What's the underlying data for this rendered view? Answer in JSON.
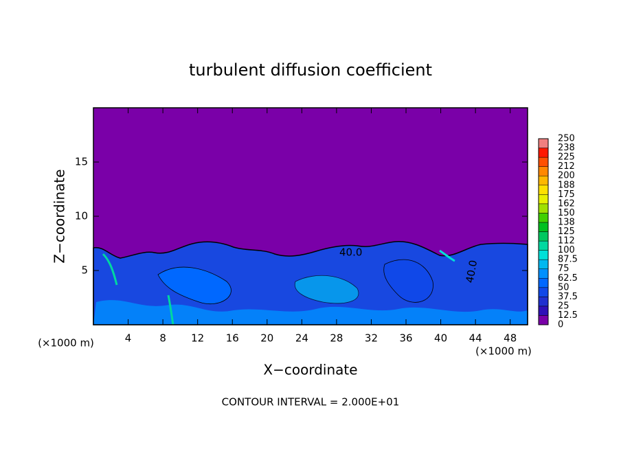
{
  "chart_data": {
    "type": "contour",
    "title": "turbulent diffusion coefficient",
    "x_label": "X−coordinate",
    "y_label": "Z−coordinate",
    "x_unit_label": "(×1000 m)",
    "annotation": "CONTOUR INTERVAL = 2.000E+01",
    "contour_labels": [
      "40.0",
      "40.0"
    ],
    "xlim": [
      0,
      50
    ],
    "xticks": [
      4,
      8,
      12,
      16,
      20,
      24,
      28,
      32,
      36,
      40,
      44,
      48
    ],
    "ylim": [
      0,
      20
    ],
    "yticks": [
      5,
      10,
      15
    ],
    "colorbar": {
      "lim": [
        0,
        250
      ],
      "ticks": [
        0,
        12.5,
        25,
        37.5,
        50,
        62.5,
        75,
        87.5,
        100,
        {
          "value": 112.5,
          "label": "112"
        },
        125,
        {
          "value": 137.5,
          "label": "138"
        },
        150,
        {
          "value": 162.5,
          "label": "162"
        },
        175,
        {
          "value": 187.5,
          "label": "188"
        },
        200,
        {
          "value": 212.5,
          "label": "212"
        },
        225,
        {
          "value": 237.5,
          "label": "238"
        },
        250
      ],
      "colors": [
        "#7a00a8",
        "#3010b8",
        "#2030d0",
        "#1048e8",
        "#0068ff",
        "#0090ff",
        "#00b8f0",
        "#00e0d8",
        "#00d8a0",
        "#00c860",
        "#00c020",
        "#40d000",
        "#a0e000",
        "#e8f000",
        "#ffe000",
        "#ffb800",
        "#ff8800",
        "#ff5000",
        "#ff1800",
        "#f08080"
      ]
    }
  }
}
